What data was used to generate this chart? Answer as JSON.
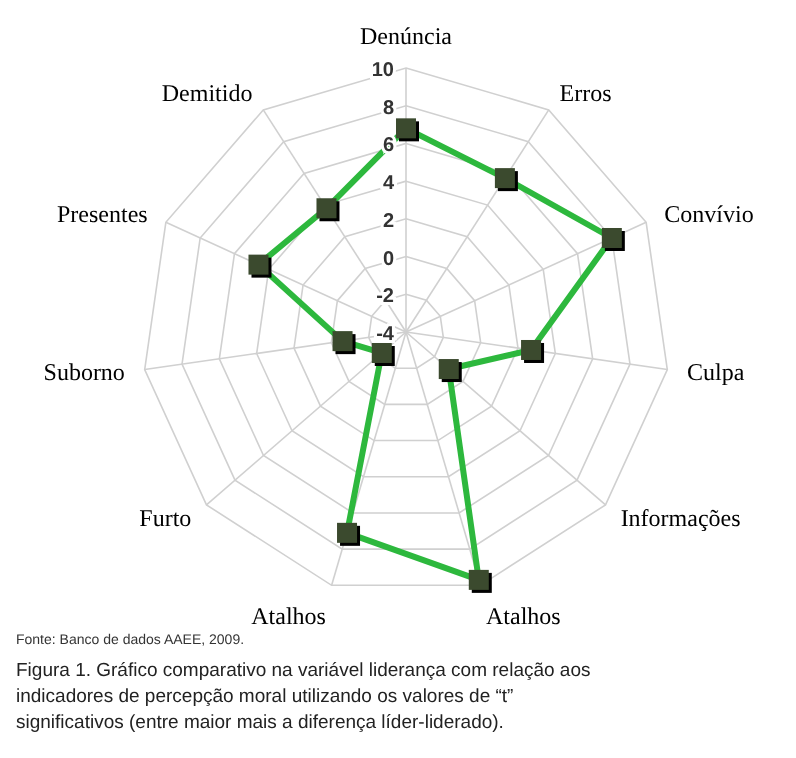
{
  "chart_data": {
    "type": "radar",
    "categories": [
      "Denúncia",
      "Erros",
      "Convívio",
      "Culpa",
      "Informações",
      "Atalhos",
      "Atalhos",
      "Furto",
      "Suborno",
      "Presentes",
      "Demitido"
    ],
    "series": [
      {
        "color": "#2db83d",
        "values": [
          6.8,
          5.7,
          8,
          2.7,
          -1,
          9.7,
          7.1,
          -2.3,
          -0.6,
          4.6,
          3.8
        ]
      }
    ],
    "ylim": [
      -4,
      10
    ],
    "yticks": [
      -4,
      -2,
      0,
      2,
      4,
      6,
      8,
      10
    ],
    "grid": true,
    "marker": "square",
    "annotations": [
      "Fonte: Banco de dados AAEE, 2009.",
      "Figura 1. Gráfico comparativo na variável liderança com relação aos indicadores de percepção moral utilizando os valores de “t” significativos (entre maior mais a diferença líder-liderado)."
    ]
  }
}
